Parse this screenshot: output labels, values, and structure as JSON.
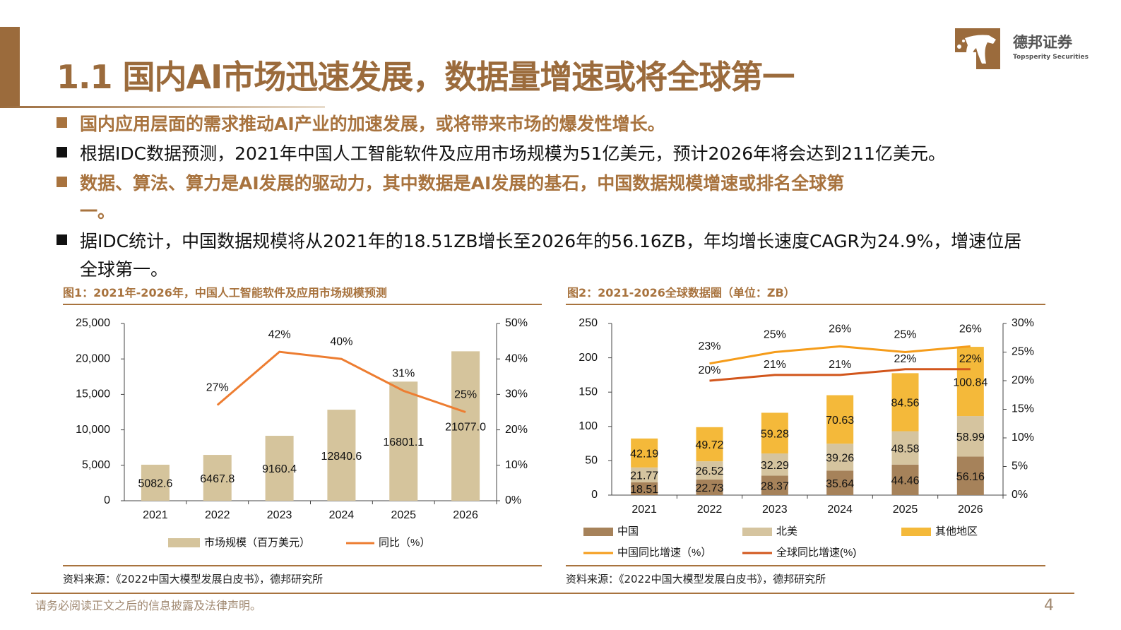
{
  "header": {
    "title": "1.1 国内AI市场迅速发展，数据量增速或将全球第一",
    "logo_cn": "德邦证券",
    "logo_en": "Topsperity Securities"
  },
  "bullets": [
    {
      "text": "国内应用层面的需求推动AI产业的加速发展，或将带来市场的爆发性增长。",
      "highlight": true
    },
    {
      "text": "根据IDC数据预测，2021年中国人工智能软件及应用市场规模为51亿美元，预计2026年将会达到211亿美元。",
      "highlight": false
    },
    {
      "text": "数据、算法、算力是AI发展的驱动力，其中数据是AI发展的基石，中国数据规模增速或排名全球第",
      "cont": "一。",
      "highlight": true
    },
    {
      "text": "据IDC统计，中国数据规模将从2021年的18.51ZB增长至2026年的56.16ZB，年均增长速度CAGR为24.9%，增速位居",
      "cont": "全球第一。",
      "highlight": false
    }
  ],
  "colors": {
    "accent": "#a8733e",
    "bar1": "#d5c49c",
    "line1": "#ed7d31",
    "china": "#a6825a",
    "north_america": "#d5c49f",
    "other": "#f4b93a",
    "china_growth": "#f59c1a",
    "global_growth": "#d2561c"
  },
  "chart_data": [
    {
      "type": "bar+line",
      "title": "图1：2021年-2026年，中国人工智能软件及应用市场规模预测",
      "categories": [
        "2021",
        "2022",
        "2023",
        "2024",
        "2025",
        "2026"
      ],
      "series": [
        {
          "name": "市场规模（百万美元）",
          "type": "bar",
          "axis": "left",
          "values": [
            5082.6,
            6467.8,
            9160.4,
            12840.6,
            16801.1,
            21077.0
          ],
          "labels": [
            "5082.6",
            "6467.8",
            "9160.4",
            "12840.6",
            "16801.1",
            "21077.0"
          ]
        },
        {
          "name": "同比（%）",
          "type": "line",
          "axis": "right",
          "values": [
            null,
            27,
            42,
            40,
            31,
            25
          ],
          "labels": [
            "",
            "27%",
            "42%",
            "40%",
            "31%",
            "25%"
          ]
        }
      ],
      "ylim": [
        0,
        25000
      ],
      "yticks": [
        "0",
        "5,000",
        "10,000",
        "15,000",
        "20,000",
        "25,000"
      ],
      "y2lim": [
        0,
        50
      ],
      "y2ticks": [
        "0%",
        "10%",
        "20%",
        "30%",
        "40%",
        "50%"
      ],
      "legend": "bottom",
      "source": "资料来源：《2022中国大模型发展白皮书》，德邦研究所"
    },
    {
      "type": "stacked-bar+line",
      "title": "图2：2021-2026全球数据圈（单位：ZB）",
      "categories": [
        "2021",
        "2022",
        "2023",
        "2024",
        "2025",
        "2026"
      ],
      "series": [
        {
          "name": "中国",
          "type": "bar",
          "axis": "left",
          "values": [
            18.51,
            22.73,
            28.37,
            35.64,
            44.46,
            56.16
          ]
        },
        {
          "name": "北美",
          "type": "bar",
          "axis": "left",
          "values": [
            21.77,
            26.52,
            32.29,
            39.26,
            48.58,
            58.99
          ]
        },
        {
          "name": "其他地区",
          "type": "bar",
          "axis": "left",
          "values": [
            42.19,
            49.72,
            59.28,
            70.63,
            84.56,
            100.84
          ]
        },
        {
          "name": "中国同比增速（%）",
          "type": "line",
          "axis": "right",
          "values": [
            null,
            23,
            25,
            26,
            25,
            26
          ]
        },
        {
          "name": "全球同比增速(%)",
          "type": "line",
          "axis": "right",
          "values": [
            null,
            20,
            21,
            21,
            22,
            22
          ]
        }
      ],
      "ylim": [
        0,
        250
      ],
      "yticks": [
        "0",
        "50",
        "100",
        "150",
        "200",
        "250"
      ],
      "y2lim": [
        0,
        30
      ],
      "y2ticks": [
        "0%",
        "5%",
        "10%",
        "15%",
        "20%",
        "25%",
        "30%"
      ],
      "legend": "bottom",
      "source": "资料来源：《2022中国大模型发展白皮书》，德邦研究所"
    }
  ],
  "footer": {
    "disclaimer": "请务必阅读正文之后的信息披露及法律声明。",
    "page": "4"
  }
}
